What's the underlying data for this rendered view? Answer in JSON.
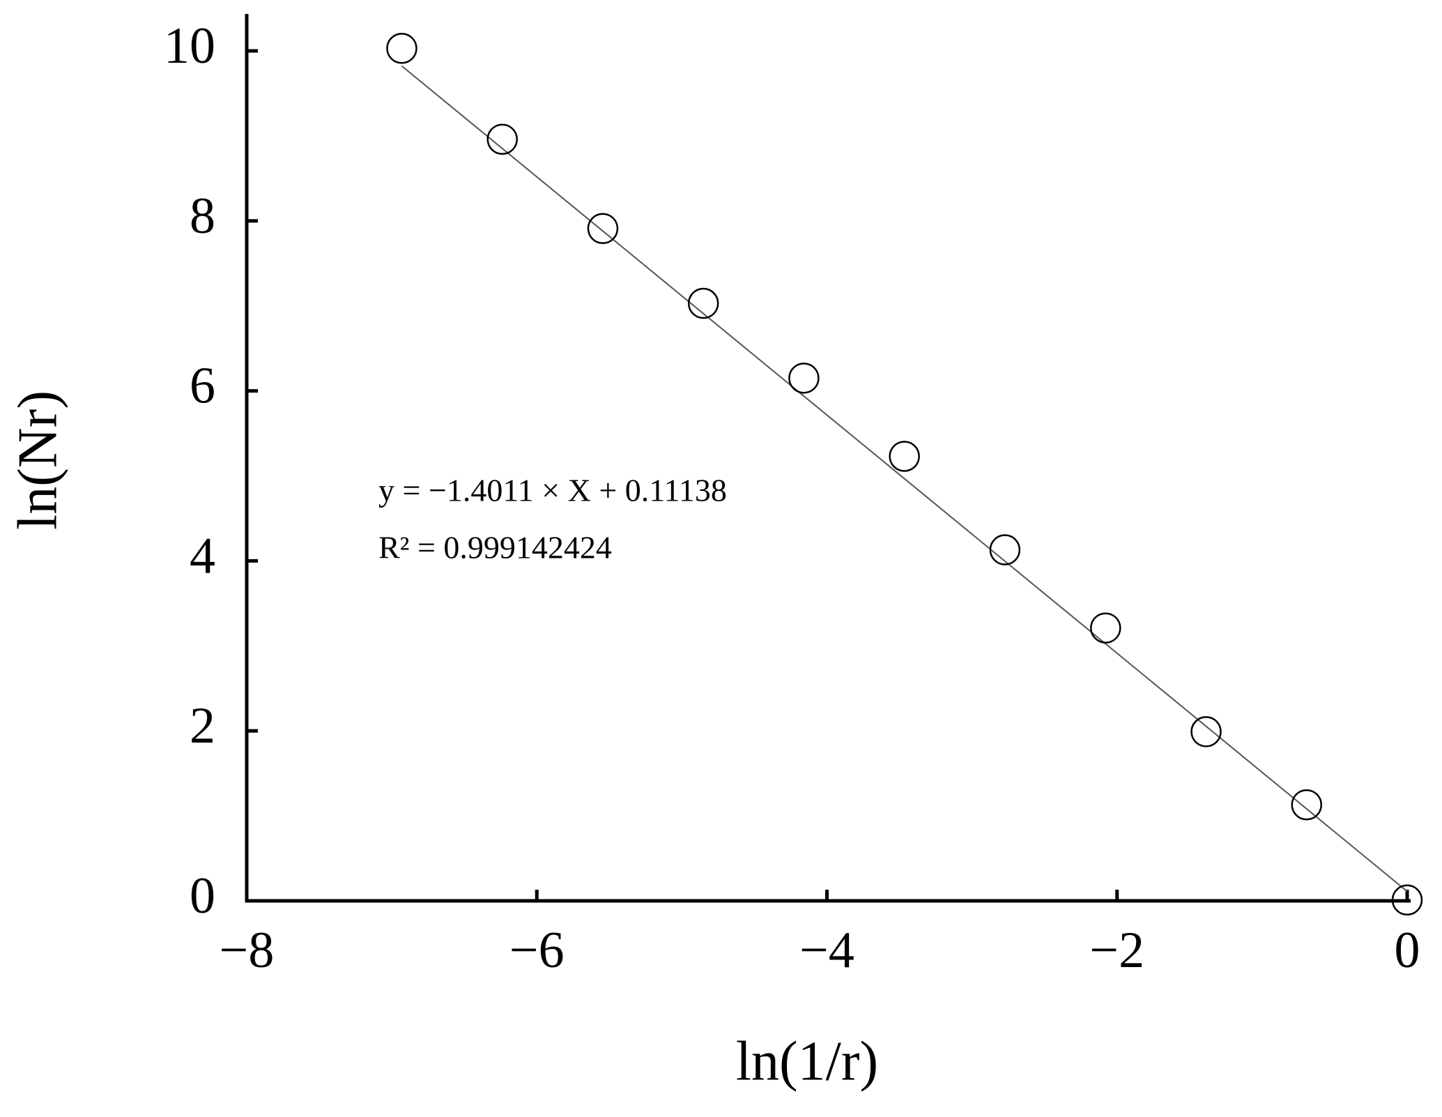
{
  "chart_data": {
    "type": "scatter",
    "xlabel": "ln(1/r)",
    "ylabel": "ln(Nr)",
    "annotations": [
      "y = −1.4011 × X +  0.11138",
      "R² = 0.999142424"
    ],
    "x": [
      -6.931,
      -6.238,
      -5.545,
      -4.852,
      -4.159,
      -3.466,
      -2.773,
      -2.079,
      -1.386,
      -0.693,
      0
    ],
    "values": [
      10.03,
      8.96,
      7.91,
      7.03,
      6.15,
      5.23,
      4.13,
      3.21,
      1.99,
      1.13,
      0.01
    ],
    "fit": {
      "slope": -1.4011,
      "intercept": 0.11138
    },
    "color": "#000000",
    "line_color": "#555555",
    "xlim": [
      -8,
      0
    ],
    "ylim": [
      0,
      10
    ],
    "xticks": [
      {
        "value": -8,
        "label": "−8"
      },
      {
        "value": -6,
        "label": "−6"
      },
      {
        "value": -4,
        "label": "−4"
      },
      {
        "value": -2,
        "label": "−2"
      },
      0
    ],
    "yticks": [
      0,
      2,
      4,
      6,
      8,
      10
    ]
  }
}
